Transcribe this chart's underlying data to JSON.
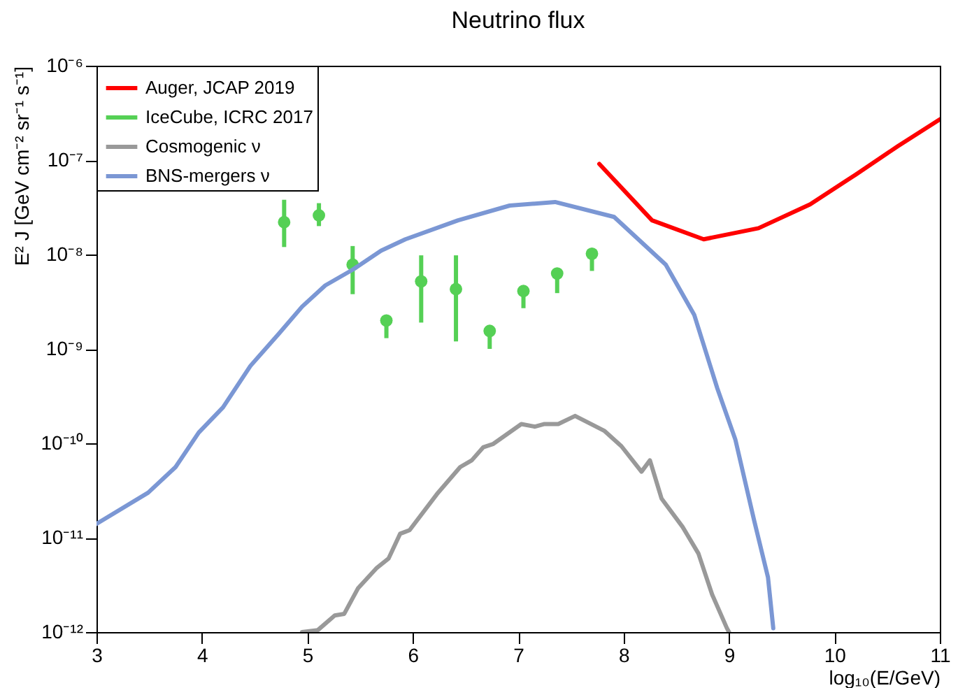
{
  "chart_data": {
    "type": "line",
    "title": "Neutrino flux",
    "xlabel": "log₁₀(E/GeV)",
    "ylabel": "E² J [GeV cm⁻² sr⁻¹ s⁻¹]",
    "log": "y",
    "legend": "top left",
    "xlim": [
      3,
      11
    ],
    "xticks": [
      3,
      4,
      5,
      6,
      7,
      8,
      9,
      10,
      11
    ],
    "ylim": [
      1e-12,
      1e-06
    ],
    "yticks": [
      {
        "value": 1e-12,
        "label": "10⁻¹²"
      },
      {
        "value": 1e-11,
        "label": "10⁻¹¹"
      },
      {
        "value": 1e-10,
        "label": "10⁻¹⁰"
      },
      {
        "value": 1e-09,
        "label": "10⁻⁹"
      },
      {
        "value": 1e-08,
        "label": "10⁻⁸"
      },
      {
        "value": 1e-07,
        "label": "10⁻⁷"
      },
      {
        "value": 1e-06,
        "label": "10⁻⁶"
      }
    ],
    "series": [
      {
        "name": "Auger, JCAP 2019",
        "color": "#ff0000",
        "x": [
          7.77,
          8.27,
          8.76,
          9.28,
          9.77,
          10.2,
          10.6,
          11.0
        ],
        "values": [
          9.1e-08,
          2.3e-08,
          1.45e-08,
          1.9e-08,
          3.4e-08,
          7e-08,
          1.4e-07,
          2.7e-07
        ]
      },
      {
        "name": "IceCube, ICRC 2017",
        "type": "scatter",
        "color": "#55d055",
        "x": [
          4.78,
          5.11,
          5.43,
          5.75,
          6.08,
          6.41,
          6.73,
          7.05,
          7.37,
          7.7
        ],
        "values": [
          2.2e-08,
          2.6e-08,
          7.8e-09,
          2e-09,
          5.2e-09,
          4.3e-09,
          1.55e-09,
          4.1e-09,
          6.3e-09,
          1.02e-08
        ],
        "errors": [
          [
            1.2e-08,
            3.8e-08
          ],
          [
            2e-08,
            3.5e-08
          ],
          [
            3.8e-09,
            1.23e-08
          ],
          [
            1.3e-09,
            2e-09
          ],
          [
            1.9e-09,
            9.8e-09
          ],
          [
            1.2e-09,
            9.8e-09
          ],
          [
            1e-09,
            1.55e-09
          ],
          [
            2.7e-09,
            4.1e-09
          ],
          [
            3.9e-09,
            6.3e-09
          ],
          [
            6.7e-09,
            1.02e-08
          ]
        ]
      },
      {
        "name": "Cosmogenic ν",
        "color": "#999999",
        "x": [
          4.95,
          5.1,
          5.26,
          5.35,
          5.48,
          5.66,
          5.77,
          5.88,
          5.97,
          6.23,
          6.45,
          6.56,
          6.67,
          6.76,
          7.03,
          7.16,
          7.25,
          7.38,
          7.54,
          7.69,
          7.82,
          7.98,
          8.17,
          8.25,
          8.36,
          8.56,
          8.71,
          8.84,
          8.98,
          9.0
        ],
        "values": [
          1e-12,
          1.05e-12,
          1.5e-12,
          1.56e-12,
          2.9e-12,
          4.8e-12,
          6e-12,
          1.1e-11,
          1.2e-11,
          2.9e-11,
          5.6e-11,
          6.6e-11,
          9.1e-11,
          9.8e-11,
          1.6e-10,
          1.5e-10,
          1.6e-10,
          1.6e-10,
          1.95e-10,
          1.6e-10,
          1.35e-10,
          9.3e-11,
          5e-11,
          6.6e-11,
          2.6e-11,
          1.3e-11,
          6.8e-12,
          2.5e-12,
          1.1e-12,
          1e-12
        ]
      },
      {
        "name": "BNS-mergers ν",
        "color": "#7b97d4",
        "x": [
          3.0,
          3.49,
          3.75,
          3.97,
          4.2,
          4.46,
          4.73,
          4.95,
          5.17,
          5.43,
          5.7,
          5.93,
          6.43,
          6.92,
          7.35,
          7.91,
          8.4,
          8.67,
          8.89,
          9.06,
          9.24,
          9.37,
          9.42
        ],
        "values": [
          1.4e-11,
          3e-11,
          5.6e-11,
          1.3e-10,
          2.4e-10,
          6.6e-10,
          1.45e-09,
          2.8e-09,
          4.7e-09,
          6.9e-09,
          1.1e-08,
          1.45e-08,
          2.3e-08,
          3.3e-08,
          3.6e-08,
          2.5e-08,
          7.8e-09,
          2.3e-09,
          3.8e-10,
          1.1e-10,
          1.5e-11,
          3.8e-12,
          1.1e-12
        ]
      }
    ]
  }
}
